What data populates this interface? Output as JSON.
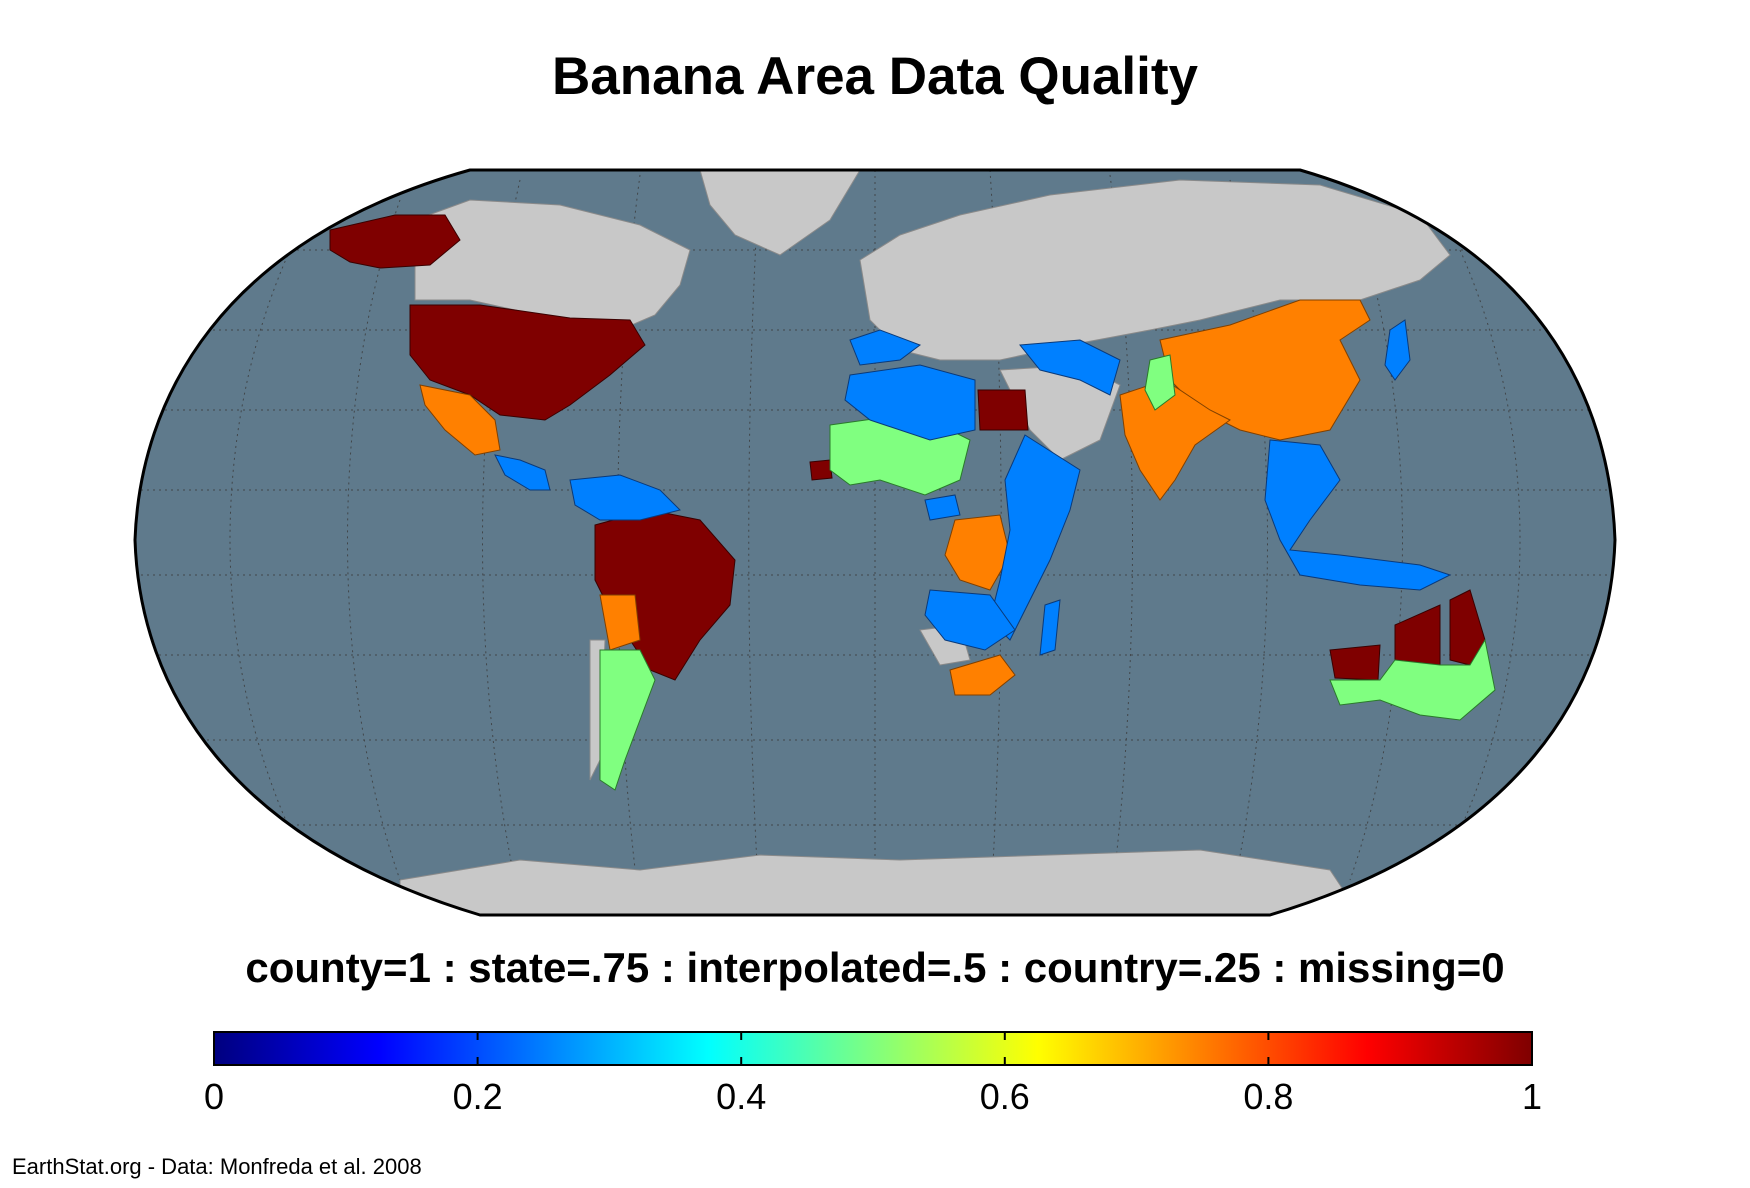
{
  "title": "Banana Area Data Quality",
  "legend": {
    "caption": "county=1 : state=.75 : interpolated=.5 : country=.25 : missing=0",
    "min": 0,
    "max": 1,
    "tick_values": [
      0,
      0.2,
      0.4,
      0.6,
      0.8,
      1
    ],
    "tick_labels": [
      "0",
      "0.2",
      "0.4",
      "0.6",
      "0.8",
      "1"
    ],
    "colormap": "jet",
    "colormap_stops": [
      "#00007f",
      "#0000ff",
      "#007fff",
      "#00ffff",
      "#7fff7f",
      "#ffff00",
      "#ff7f00",
      "#ff0000",
      "#7f0000"
    ]
  },
  "credit": "EarthStat.org - Data: Monfreda et al. 2008",
  "colors": {
    "ocean": "#5f7a8c",
    "land_no_data": "#c8c8c8",
    "value_1": "#7f0000",
    "value_0_75": "#ff8000",
    "value_0_5": "#80ff80",
    "value_0_25": "#0080ff"
  },
  "map": {
    "projection": "Robinson",
    "regions": [
      {
        "name": "United States",
        "value": 1
      },
      {
        "name": "Alaska",
        "value": 1
      },
      {
        "name": "Brazil",
        "value": 1
      },
      {
        "name": "Egypt",
        "value": 1
      },
      {
        "name": "Senegal",
        "value": 1
      },
      {
        "name": "Australia (Northern Territory, Queensland, Western)",
        "value": 1
      },
      {
        "name": "Mexico",
        "value": 0.75
      },
      {
        "name": "China",
        "value": 0.75
      },
      {
        "name": "India",
        "value": 0.75
      },
      {
        "name": "Bolivia",
        "value": 0.75
      },
      {
        "name": "DR Congo",
        "value": 0.75
      },
      {
        "name": "South Africa",
        "value": 0.75
      },
      {
        "name": "Argentina",
        "value": 0.5
      },
      {
        "name": "Sahel West Africa",
        "value": 0.5
      },
      {
        "name": "Pakistan",
        "value": 0.5
      },
      {
        "name": "Australia (South & East)",
        "value": 0.5
      },
      {
        "name": "North Africa",
        "value": 0.25
      },
      {
        "name": "East Africa",
        "value": 0.25
      },
      {
        "name": "Middle East",
        "value": 0.25
      },
      {
        "name": "Southeast Asia",
        "value": 0.25
      },
      {
        "name": "Northern South America",
        "value": 0.25
      },
      {
        "name": "Central America",
        "value": 0.25
      },
      {
        "name": "Japan",
        "value": 0.25
      }
    ]
  }
}
